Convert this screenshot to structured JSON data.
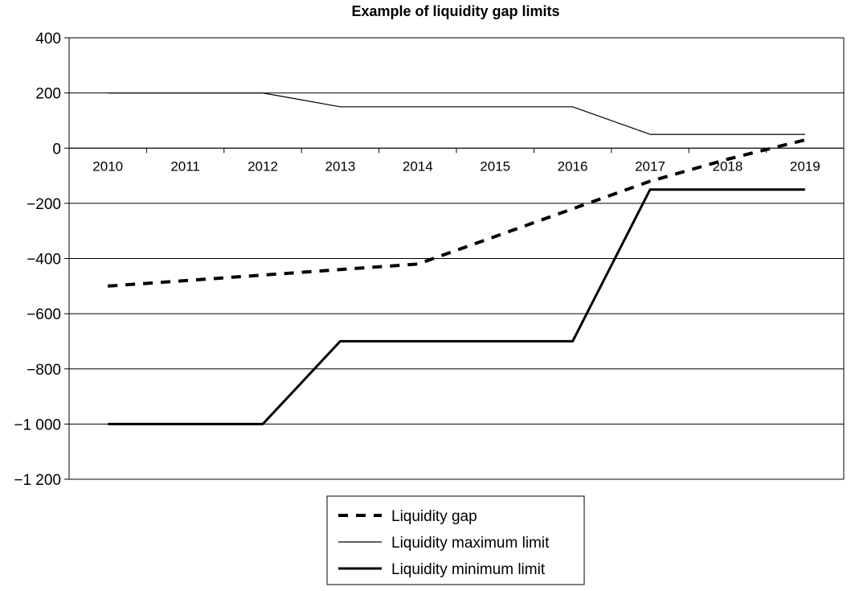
{
  "chart_data": {
    "type": "line",
    "title": "Example of liquidity gap limits",
    "xlabel": "",
    "ylabel": "",
    "categories": [
      "2010",
      "2011",
      "2012",
      "2013",
      "2014",
      "2015",
      "2016",
      "2017",
      "2018",
      "2019"
    ],
    "yticks": [
      "400",
      "200",
      "0",
      "−200",
      "−400",
      "−600",
      "−800",
      "−1 000",
      "−1 200"
    ],
    "ytick_values": [
      400,
      200,
      0,
      -200,
      -400,
      -600,
      -800,
      -1000,
      -1200
    ],
    "ylim": [
      -1200,
      400
    ],
    "grid": true,
    "legend_position": "bottom-center",
    "series": [
      {
        "name": "Liquidity gap",
        "style": "dashed-thick",
        "color": "#000000",
        "values": [
          -500,
          -480,
          -460,
          -440,
          -420,
          -320,
          -220,
          -120,
          -40,
          30
        ]
      },
      {
        "name": "Liquidity maximum limit",
        "style": "solid-thin",
        "color": "#000000",
        "values": [
          200,
          200,
          200,
          150,
          150,
          150,
          150,
          50,
          50,
          50
        ]
      },
      {
        "name": "Liquidity minimum limit",
        "style": "solid-thick",
        "color": "#000000",
        "values": [
          -1000,
          -1000,
          -1000,
          -700,
          -700,
          -700,
          -700,
          -150,
          -150,
          -150
        ]
      }
    ]
  }
}
